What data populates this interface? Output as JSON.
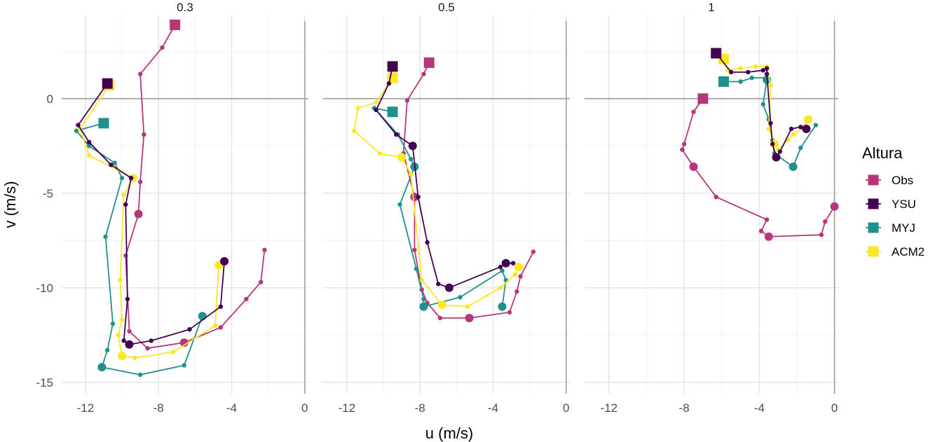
{
  "chart_data": {
    "type": "line",
    "facet_variable": "panel",
    "panels": [
      "0.3",
      "0.5",
      "1"
    ],
    "xlabel": "u (m/s)",
    "ylabel": "v (m/s)",
    "xlim": [
      -13.3,
      0.2
    ],
    "ylim": [
      -15.6,
      4.4
    ],
    "xticks": [
      -12,
      -8,
      -4,
      0
    ],
    "xtick_labels": [
      "-12",
      "-8",
      "-4",
      "0"
    ],
    "yticks": [
      0,
      -5,
      -10,
      -15
    ],
    "ytick_labels": [
      "0",
      "-5",
      "-10",
      "-15"
    ],
    "grid": true,
    "zero_reference_lines": true,
    "legend": {
      "title": "Altura",
      "position": "right",
      "entries": [
        "Obs",
        "YSU",
        "MYJ",
        "ACM2"
      ]
    },
    "series_colors": {
      "Obs": "#B5367A",
      "YSU": "#440154",
      "MYJ": "#21908C",
      "ACM2": "#FDE725"
    },
    "marker_note": "square = start of trajectory; large circles = highlighted hours",
    "series": [
      {
        "name": "Obs",
        "panel": "0.3",
        "x": [
          -7.1,
          -7.8,
          -9.0,
          -8.8,
          -9.0,
          -9.1,
          -9.8,
          -9.6,
          -8.6,
          -6.6,
          -4.6,
          -3.2,
          -2.4,
          -2.2
        ],
        "y": [
          3.9,
          2.7,
          1.3,
          -1.9,
          -4.4,
          -6.1,
          -8.3,
          -12.3,
          -13.2,
          -12.9,
          -12.1,
          -10.6,
          -9.7,
          -8.0
        ],
        "big": [
          0,
          5,
          9
        ]
      },
      {
        "name": "YSU",
        "panel": "0.3",
        "x": [
          -10.8,
          -12.4,
          -11.8,
          -10.6,
          -9.5,
          -9.8,
          -9.7,
          -9.9,
          -9.6,
          -8.4,
          -6.3,
          -4.6,
          -4.4
        ],
        "y": [
          0.8,
          -1.4,
          -2.3,
          -3.5,
          -4.2,
          -5.6,
          -10.6,
          -12.8,
          -13.0,
          -12.8,
          -12.2,
          -11.0,
          -8.6
        ],
        "big": [
          0,
          8,
          12
        ]
      },
      {
        "name": "MYJ",
        "panel": "0.3",
        "x": [
          -11.0,
          -12.5,
          -11.8,
          -10.4,
          -10.0,
          -10.9,
          -10.5,
          -10.8,
          -11.1,
          -9.0,
          -6.6,
          -5.6
        ],
        "y": [
          -1.3,
          -1.7,
          -2.5,
          -3.4,
          -4.2,
          -7.3,
          -11.9,
          -13.3,
          -14.2,
          -14.6,
          -14.1,
          -11.5
        ],
        "big": [
          0,
          8,
          11
        ]
      },
      {
        "name": "ACM2",
        "panel": "0.3",
        "x": [
          -10.7,
          -12.3,
          -11.8,
          -9.4,
          -9.9,
          -10.1,
          -10.0,
          -10.2,
          -10.0,
          -9.3,
          -7.2,
          -4.9,
          -4.7
        ],
        "y": [
          0.7,
          -1.6,
          -3.0,
          -4.2,
          -5.1,
          -9.6,
          -11.7,
          -12.5,
          -13.6,
          -13.7,
          -13.4,
          -12.0,
          -8.8
        ],
        "big": [
          0,
          3,
          8,
          12
        ]
      },
      {
        "name": "Obs",
        "panel": "0.5",
        "x": [
          -7.5,
          -7.8,
          -8.7,
          -8.9,
          -8.3,
          -8.3,
          -7.9,
          -7.6,
          -6.9,
          -5.3,
          -3.1,
          -2.7,
          -2.5,
          -1.8
        ],
        "y": [
          1.9,
          1.3,
          -0.1,
          -2.9,
          -5.2,
          -8.0,
          -10.1,
          -10.8,
          -11.6,
          -11.6,
          -11.3,
          -10.2,
          -9.4,
          -8.1
        ],
        "big": [
          0,
          4,
          9
        ]
      },
      {
        "name": "YSU",
        "panel": "0.5",
        "x": [
          -9.5,
          -9.7,
          -10.4,
          -9.3,
          -8.4,
          -8.1,
          -7.6,
          -7.0,
          -6.4,
          -3.6,
          -3.3,
          -2.9
        ],
        "y": [
          1.7,
          0.8,
          -0.6,
          -1.9,
          -2.5,
          -5.2,
          -7.6,
          -9.8,
          -10.0,
          -8.9,
          -8.7,
          -8.7
        ],
        "big": [
          0,
          4,
          8,
          10
        ]
      },
      {
        "name": "MYJ",
        "panel": "0.5",
        "x": [
          -9.5,
          -10.5,
          -9.2,
          -8.5,
          -8.3,
          -9.1,
          -8.2,
          -7.8,
          -7.8,
          -5.8,
          -3.5,
          -3.3,
          -3.5
        ],
        "y": [
          -0.7,
          -0.5,
          -1.9,
          -3.2,
          -3.6,
          -5.6,
          -9.0,
          -10.6,
          -11.0,
          -10.5,
          -9.1,
          -9.6,
          -11.0
        ],
        "big": [
          0,
          4,
          8,
          12
        ]
      },
      {
        "name": "ACM2",
        "panel": "0.5",
        "x": [
          -9.5,
          -10.4,
          -11.4,
          -11.6,
          -10.2,
          -9.0,
          -8.5,
          -7.9,
          -6.8,
          -5.4,
          -3.6,
          -2.8,
          -2.6
        ],
        "y": [
          1.1,
          -0.2,
          -0.5,
          -1.7,
          -2.9,
          -3.1,
          -4.0,
          -9.6,
          -10.9,
          -11.0,
          -10.0,
          -9.3,
          -8.9
        ],
        "big": [
          0,
          5,
          8,
          12
        ]
      },
      {
        "name": "Obs",
        "panel": "1",
        "x": [
          -7.0,
          -7.5,
          -8.0,
          -8.1,
          -7.5,
          -6.3,
          -3.6,
          -3.9,
          -3.5,
          -0.7,
          -0.5,
          0.0
        ],
        "y": [
          0.0,
          -0.7,
          -2.4,
          -2.7,
          -3.6,
          -5.2,
          -6.4,
          -7.0,
          -7.3,
          -7.2,
          -6.5,
          -5.7
        ],
        "big": [
          0,
          4,
          8,
          11
        ]
      },
      {
        "name": "YSU",
        "panel": "1",
        "x": [
          -6.3,
          -5.5,
          -4.6,
          -3.8,
          -3.6,
          -3.6,
          -3.4,
          -3.3,
          -3.1,
          -2.9,
          -2.3,
          -1.8,
          -1.5
        ],
        "y": [
          2.4,
          1.4,
          1.4,
          1.5,
          1.6,
          1.3,
          -1.3,
          -2.4,
          -3.1,
          -2.8,
          -1.6,
          -1.5,
          -1.6
        ],
        "big": [
          0,
          8,
          12
        ]
      },
      {
        "name": "MYJ",
        "panel": "1",
        "x": [
          -5.9,
          -5.0,
          -4.4,
          -3.6,
          -3.6,
          -3.8,
          -3.5,
          -3.3,
          -3.2,
          -2.2,
          -1.8,
          -1.0
        ],
        "y": [
          0.9,
          0.9,
          1.1,
          1.1,
          1.0,
          -0.3,
          -1.1,
          -2.2,
          -2.9,
          -3.6,
          -2.6,
          -1.4
        ],
        "big": [
          0,
          4,
          9
        ]
      },
      {
        "name": "ACM2",
        "panel": "1",
        "x": [
          -5.9,
          -5.7,
          -5.0,
          -4.2,
          -3.6,
          -3.4,
          -3.5,
          -3.2,
          -3.0,
          -2.5,
          -2.2,
          -1.6,
          -1.4
        ],
        "y": [
          2.1,
          1.5,
          1.6,
          1.7,
          1.7,
          0.7,
          -1.6,
          -2.4,
          -2.7,
          -2.2,
          -1.9,
          -1.5,
          -1.1
        ],
        "big": [
          0,
          7,
          12
        ]
      }
    ]
  }
}
